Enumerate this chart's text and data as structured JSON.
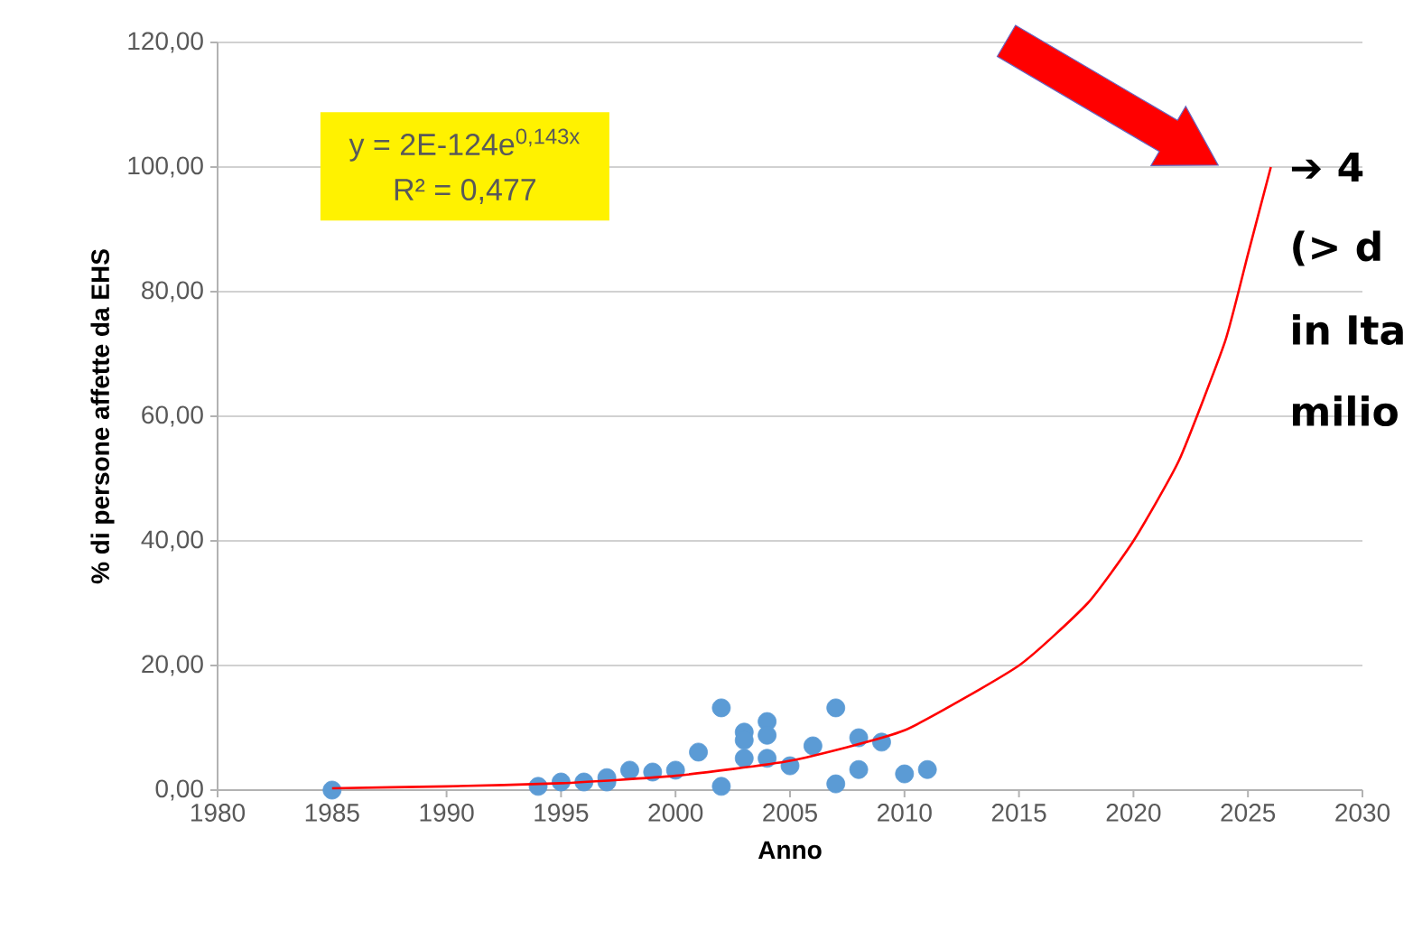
{
  "chart_data": {
    "type": "scatter",
    "xlabel": "Anno",
    "ylabel": "% di persone affette da EHS",
    "annotations": [
      "y = 2E-124e$^{0,143x}$",
      "R² = 0,477",
      "➔ 4",
      "(> d",
      "in Ita",
      "milio"
    ],
    "xlim": [
      1980,
      2030
    ],
    "xticks": [
      1980,
      1985,
      1990,
      1995,
      2000,
      2005,
      2010,
      2015,
      2020,
      2025,
      2030
    ],
    "ylim": [
      0,
      120
    ],
    "yticks": [
      {
        "value": 0,
        "label": "0,00"
      },
      {
        "value": 20,
        "label": "20,00"
      },
      {
        "value": 40,
        "label": "40,00"
      },
      {
        "value": 60,
        "label": "60,00"
      },
      {
        "value": 80,
        "label": "80,00"
      },
      {
        "value": 100,
        "label": "100,00"
      },
      {
        "value": 120,
        "label": "120,00"
      }
    ],
    "grid": "y",
    "series": [
      {
        "color": "#5b9bd5",
        "marker": "circle",
        "x": [
          1985,
          1994,
          1995,
          1996,
          1997,
          1997,
          1998,
          1999,
          2000,
          2001,
          2002,
          2002,
          2003,
          2003,
          2003,
          2004,
          2004,
          2004,
          2005,
          2006,
          2007,
          2007,
          2008,
          2008,
          2009,
          2010,
          2011
        ],
        "values": [
          0,
          0.6,
          1.3,
          1.3,
          1.3,
          2.0,
          3.2,
          2.9,
          3.2,
          6.1,
          13.2,
          0.6,
          9.3,
          8.0,
          5.1,
          11.0,
          8.8,
          5.1,
          3.9,
          7.1,
          13.2,
          1.0,
          8.4,
          3.3,
          7.7,
          2.6,
          3.3
        ]
      },
      {
        "type": "line",
        "color": "#ff0000",
        "marker": "none",
        "line_style": "solid",
        "x": [
          1985,
          1990,
          1995,
          2000,
          2005,
          2010,
          2015,
          2018,
          2020,
          2022,
          2024,
          2025,
          2026
        ],
        "values": [
          0.3,
          0.6,
          1.1,
          2.3,
          4.7,
          9.6,
          20,
          30,
          40,
          53,
          72,
          86,
          100
        ]
      }
    ]
  }
}
